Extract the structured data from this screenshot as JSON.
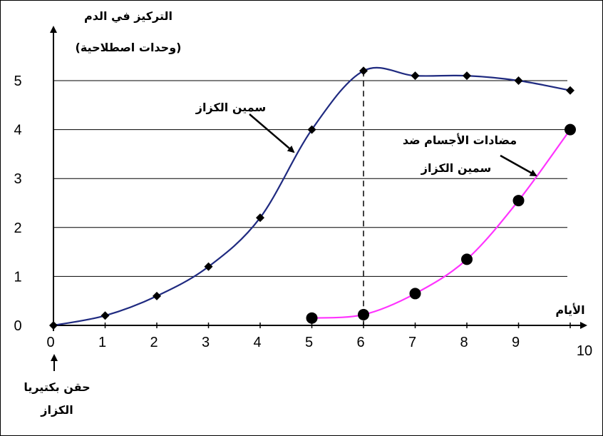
{
  "chart_data": {
    "type": "line",
    "ylabel_line1": "التركيز في الدم",
    "ylabel_line2": "(وحدات اصطلاحية)",
    "xlabel": "الأيام",
    "xlim": [
      0,
      10
    ],
    "ylim": [
      0,
      5
    ],
    "x_ticks": [
      "0",
      "1",
      "2",
      "3",
      "4",
      "5",
      "6",
      "7",
      "8",
      "9",
      "10"
    ],
    "y_ticks": [
      "0",
      "1",
      "2",
      "3",
      "4",
      "5"
    ],
    "grid": "horizontal",
    "marker_line_x": 6,
    "series": [
      {
        "name": "سمين الكزاز",
        "color": "#1f2a80",
        "marker": "diamond",
        "points": [
          [
            0,
            0
          ],
          [
            1,
            0.2
          ],
          [
            2,
            0.6
          ],
          [
            3,
            1.2
          ],
          [
            4,
            2.2
          ],
          [
            5,
            4.0
          ],
          [
            6,
            5.2
          ],
          [
            7,
            5.1
          ],
          [
            8,
            5.1
          ],
          [
            9,
            5.0
          ],
          [
            10,
            4.8
          ]
        ]
      },
      {
        "name_line1": "مضادات الأجسام ضد",
        "name_line2": "سمين الكزاز",
        "color": "#ff33ff",
        "marker": "circle",
        "points": [
          [
            5,
            0.15
          ],
          [
            6,
            0.22
          ],
          [
            7,
            0.65
          ],
          [
            8,
            1.35
          ],
          [
            9,
            2.55
          ],
          [
            10,
            4.0
          ]
        ]
      }
    ],
    "annotation_injection_line1": "حقن بكتيريا",
    "annotation_injection_line2": "الكزاز"
  }
}
